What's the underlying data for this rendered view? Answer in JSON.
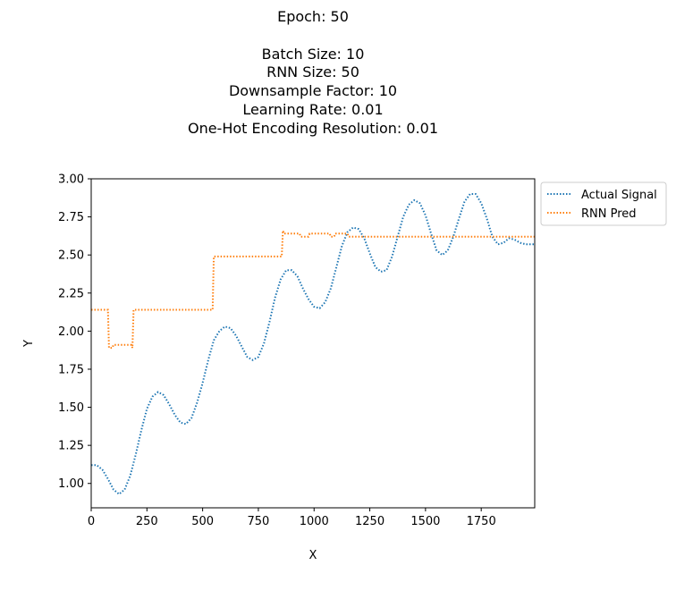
{
  "chart_data": {
    "type": "line",
    "title_lines": [
      "Epoch: 50",
      "",
      "Batch Size: 10",
      "RNN Size: 50",
      "Downsample Factor: 10",
      "Learning Rate: 0.01",
      "One-Hot Encoding Resolution: 0.01"
    ],
    "xlabel": "X",
    "ylabel": "Y",
    "xlim": [
      0,
      1990
    ],
    "ylim": [
      0.84,
      3.0
    ],
    "x_ticks": [
      0,
      250,
      500,
      750,
      1000,
      1250,
      1500,
      1750
    ],
    "x_tick_labels": [
      "0",
      "250",
      "500",
      "750",
      "1000",
      "1250",
      "1500",
      "1750"
    ],
    "y_ticks": [
      1.0,
      1.25,
      1.5,
      1.75,
      2.0,
      2.25,
      2.5,
      2.75,
      3.0
    ],
    "y_tick_labels": [
      "1.00",
      "1.25",
      "1.50",
      "1.75",
      "2.00",
      "2.25",
      "2.50",
      "2.75",
      "3.00"
    ],
    "legend_position": "outside upper-right",
    "grid": false,
    "series": [
      {
        "name": "Actual Signal",
        "color": "#1f77b4",
        "style": "dotted",
        "x": [
          0,
          25,
          50,
          75,
          100,
          125,
          150,
          175,
          200,
          225,
          250,
          275,
          300,
          325,
          350,
          375,
          400,
          425,
          450,
          475,
          500,
          525,
          550,
          575,
          600,
          625,
          650,
          675,
          700,
          725,
          750,
          775,
          800,
          825,
          850,
          875,
          900,
          925,
          950,
          975,
          1000,
          1025,
          1050,
          1075,
          1100,
          1125,
          1150,
          1175,
          1200,
          1225,
          1250,
          1275,
          1300,
          1325,
          1350,
          1375,
          1400,
          1425,
          1450,
          1475,
          1500,
          1525,
          1550,
          1575,
          1600,
          1625,
          1650,
          1675,
          1700,
          1725,
          1750,
          1775,
          1800,
          1825,
          1850,
          1875,
          1900,
          1925,
          1950,
          1975,
          1990
        ],
        "y": [
          1.12,
          1.12,
          1.09,
          1.03,
          0.96,
          0.93,
          0.96,
          1.05,
          1.19,
          1.35,
          1.49,
          1.57,
          1.6,
          1.58,
          1.52,
          1.45,
          1.4,
          1.39,
          1.43,
          1.53,
          1.66,
          1.81,
          1.94,
          2.0,
          2.03,
          2.02,
          1.97,
          1.9,
          1.83,
          1.81,
          1.83,
          1.92,
          2.06,
          2.22,
          2.34,
          2.4,
          2.4,
          2.36,
          2.28,
          2.21,
          2.16,
          2.15,
          2.19,
          2.28,
          2.42,
          2.56,
          2.65,
          2.68,
          2.67,
          2.61,
          2.51,
          2.42,
          2.39,
          2.4,
          2.49,
          2.62,
          2.75,
          2.83,
          2.86,
          2.84,
          2.76,
          2.64,
          2.53,
          2.5,
          2.53,
          2.62,
          2.74,
          2.85,
          2.9,
          2.9,
          2.84,
          2.74,
          2.62,
          2.57,
          2.58,
          2.61,
          2.6,
          2.58,
          2.57,
          2.57,
          2.57
        ]
      },
      {
        "name": "RNN Pred",
        "color": "#ff7f0e",
        "style": "dotted",
        "x": [
          0,
          75,
          80,
          95,
          100,
          180,
          185,
          190,
          545,
          550,
          855,
          860,
          865,
          935,
          940,
          975,
          980,
          1070,
          1075,
          1090,
          1095,
          1150,
          1155,
          1990
        ],
        "y": [
          2.14,
          2.14,
          1.89,
          1.89,
          1.91,
          1.91,
          1.89,
          2.14,
          2.14,
          2.49,
          2.49,
          2.66,
          2.64,
          2.64,
          2.62,
          2.62,
          2.64,
          2.64,
          2.62,
          2.62,
          2.64,
          2.64,
          2.62,
          2.62
        ]
      }
    ]
  }
}
